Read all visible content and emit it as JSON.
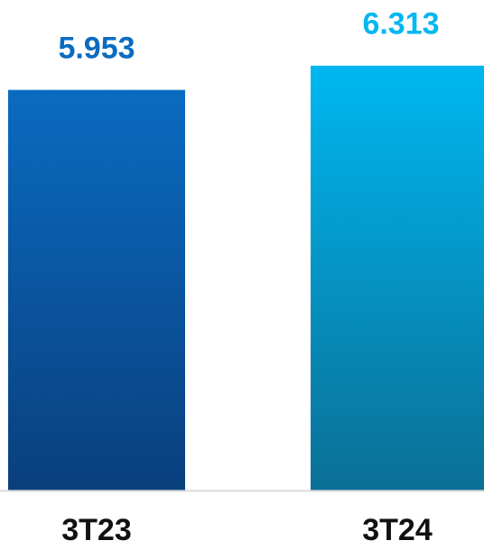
{
  "chart_data": {
    "type": "bar",
    "categories": [
      "3T23",
      "3T24"
    ],
    "values": [
      5953,
      6313
    ],
    "value_labels": [
      "5.953",
      "6.313"
    ],
    "title": "",
    "xlabel": "",
    "ylabel": "",
    "grid": false,
    "legend": "none"
  },
  "colors": {
    "bar_3T23_top": "#0A6BC1",
    "bar_3T23_bottom": "#0A3F7D",
    "bar_3T24_top": "#00B7F1",
    "bar_3T24_bottom": "#0A6F95",
    "value_3T23": "#0A6BC1",
    "value_3T24": "#00B7F1",
    "baseline": "#D9D9D9",
    "category_text": "#111111"
  }
}
